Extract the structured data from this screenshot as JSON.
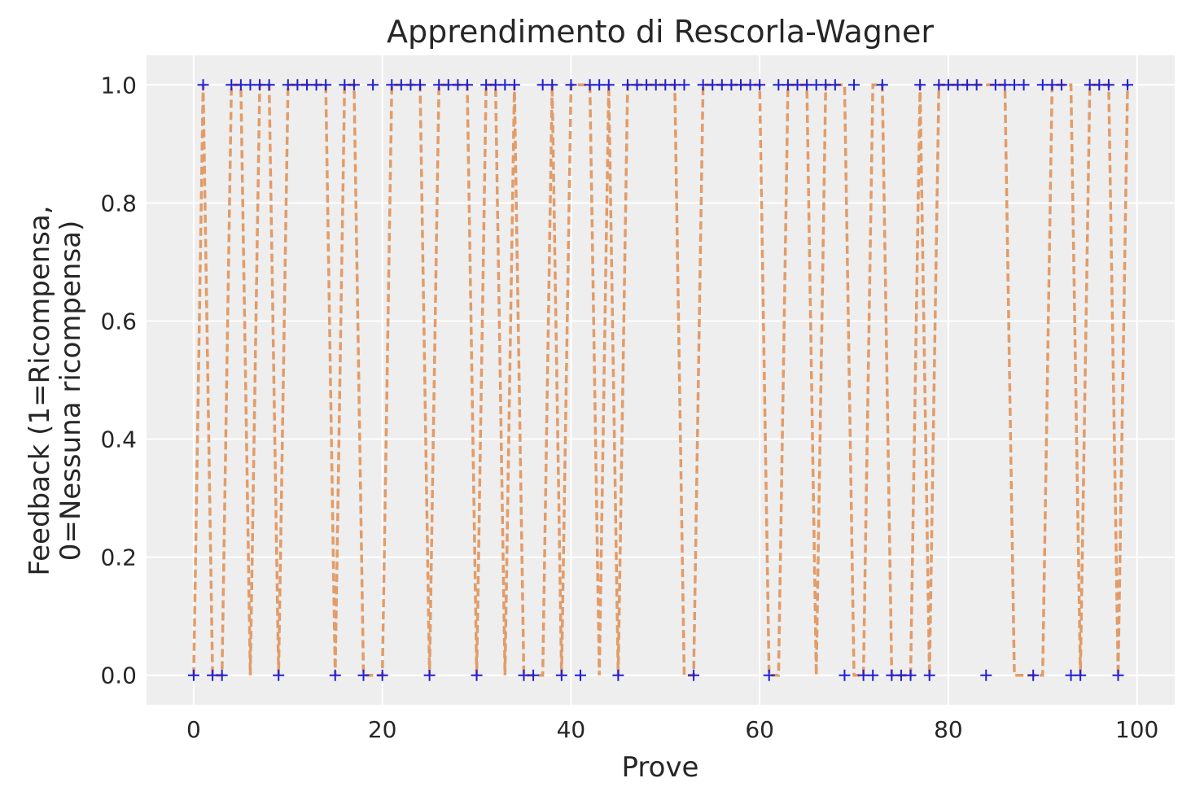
{
  "chart_data": {
    "type": "line",
    "title": "Apprendimento di Rescorla-Wagner",
    "xlabel": "Prove",
    "ylabel_lines": [
      "Feedback (1=Ricompensa,",
      "0=Nessuna ricompensa)"
    ],
    "xlim": [
      -5,
      104
    ],
    "ylim": [
      -0.05,
      1.05
    ],
    "xticks": [
      0,
      20,
      40,
      60,
      80,
      100
    ],
    "yticks": [
      0.0,
      0.2,
      0.4,
      0.6,
      0.8,
      1.0
    ],
    "xtick_labels": [
      "0",
      "20",
      "40",
      "60",
      "80",
      "100"
    ],
    "ytick_labels": [
      "0.0",
      "0.2",
      "0.4",
      "0.6",
      "0.8",
      "1.0"
    ],
    "grid": true,
    "colors": {
      "background": "#eeeeee",
      "grid": "#ffffff",
      "line": "#e0925a",
      "markers": "#1f1fd6",
      "text": "#262626"
    },
    "x": [
      0,
      1,
      2,
      3,
      4,
      5,
      6,
      7,
      8,
      9,
      10,
      11,
      12,
      13,
      14,
      15,
      16,
      17,
      18,
      19,
      20,
      21,
      22,
      23,
      24,
      25,
      26,
      27,
      28,
      29,
      30,
      31,
      32,
      33,
      34,
      35,
      36,
      37,
      38,
      39,
      40,
      41,
      42,
      43,
      44,
      45,
      46,
      47,
      48,
      49,
      50,
      51,
      52,
      53,
      54,
      55,
      56,
      57,
      58,
      59,
      60,
      61,
      62,
      63,
      64,
      65,
      66,
      67,
      68,
      69,
      70,
      71,
      72,
      73,
      74,
      75,
      76,
      77,
      78,
      79,
      80,
      81,
      82,
      83,
      84,
      85,
      86,
      87,
      88,
      89,
      90,
      91,
      92,
      93,
      94,
      95,
      96,
      97,
      98,
      99
    ],
    "series": [
      {
        "style": "dashed-line",
        "values": [
          0,
          1,
          0,
          0,
          1,
          1,
          0,
          1,
          1,
          0,
          1,
          1,
          1,
          1,
          1,
          0,
          1,
          1,
          0,
          0,
          0,
          1,
          1,
          1,
          1,
          0,
          1,
          1,
          1,
          1,
          0,
          1,
          1,
          0,
          1,
          0,
          0,
          0,
          1,
          0,
          1,
          1,
          1,
          0,
          1,
          0,
          1,
          1,
          1,
          1,
          1,
          1,
          0,
          0,
          1,
          1,
          1,
          1,
          1,
          1,
          1,
          0,
          0,
          1,
          1,
          1,
          0,
          1,
          1,
          1,
          0,
          0,
          1,
          1,
          0,
          0,
          0,
          1,
          0,
          1,
          1,
          1,
          1,
          1,
          1,
          1,
          1,
          0,
          0,
          0,
          0,
          1,
          1,
          1,
          0,
          1,
          1,
          1,
          0,
          1
        ]
      },
      {
        "style": "plus-markers",
        "values": [
          0,
          1,
          0,
          0,
          1,
          1,
          1,
          1,
          1,
          0,
          1,
          1,
          1,
          1,
          1,
          0,
          1,
          1,
          0,
          1,
          0,
          1,
          1,
          1,
          1,
          0,
          1,
          1,
          1,
          1,
          0,
          1,
          1,
          1,
          1,
          0,
          0,
          1,
          1,
          0,
          1,
          0,
          1,
          1,
          1,
          0,
          1,
          1,
          1,
          1,
          1,
          1,
          1,
          0,
          1,
          1,
          1,
          1,
          1,
          1,
          1,
          0,
          1,
          1,
          1,
          1,
          1,
          1,
          1,
          0,
          1,
          0,
          0,
          1,
          0,
          0,
          0,
          1,
          0,
          1,
          1,
          1,
          1,
          1,
          0,
          1,
          1,
          1,
          1,
          0,
          1,
          1,
          1,
          0,
          0,
          1,
          1,
          1,
          0,
          1
        ]
      }
    ]
  }
}
